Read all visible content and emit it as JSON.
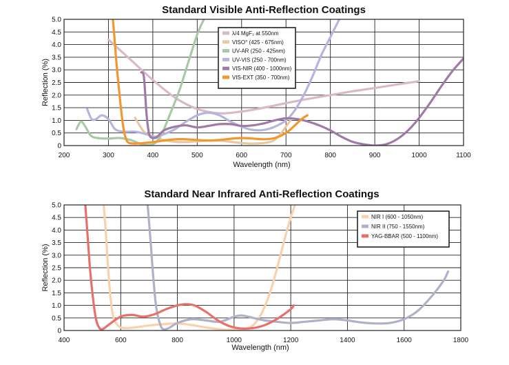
{
  "chart_data": [
    {
      "type": "line",
      "title": "Standard Visible Anti-Reflection Coatings",
      "xlabel": "Wavelength (nm)",
      "ylabel": "Reflection (%)",
      "xlim": [
        200,
        1100
      ],
      "ylim": [
        0,
        5.0
      ],
      "xticks": [
        200,
        300,
        400,
        500,
        600,
        700,
        800,
        900,
        1000,
        1100
      ],
      "yticks": [
        0,
        0.5,
        1.0,
        1.5,
        2.0,
        2.5,
        3.0,
        3.5,
        4.0,
        4.5,
        5.0
      ],
      "ytick_labels": [
        "0",
        "0.5",
        "1.0",
        "1.5",
        "2.0",
        "2.5",
        "3.0",
        "3.5",
        "4.0",
        "4.5",
        "5.0"
      ],
      "grid": true,
      "legend_position": "top-center",
      "series": [
        {
          "name": "λ/4 MgF₂ at 550nm",
          "color": "#d8b9c8",
          "points": [
            [
              300,
              4.2
            ],
            [
              350,
              3.4
            ],
            [
              400,
              2.6
            ],
            [
              450,
              1.9
            ],
            [
              500,
              1.45
            ],
            [
              550,
              1.28
            ],
            [
              600,
              1.35
            ],
            [
              650,
              1.5
            ],
            [
              700,
              1.68
            ],
            [
              750,
              1.85
            ],
            [
              800,
              2.0
            ],
            [
              850,
              2.15
            ],
            [
              900,
              2.28
            ],
            [
              950,
              2.42
            ],
            [
              1000,
              2.55
            ]
          ]
        },
        {
          "name": "VISO° (425 - 675nm)",
          "color": "#e8c7a4",
          "points": [
            [
              360,
              1.1
            ],
            [
              380,
              0.55
            ],
            [
              400,
              0.35
            ],
            [
              425,
              0.22
            ],
            [
              450,
              0.15
            ],
            [
              475,
              0.14
            ],
            [
              500,
              0.17
            ],
            [
              525,
              0.2
            ],
            [
              550,
              0.2
            ],
            [
              575,
              0.15
            ],
            [
              600,
              0.1
            ],
            [
              625,
              0.08
            ],
            [
              650,
              0.1
            ],
            [
              670,
              0.18
            ],
            [
              685,
              0.4
            ],
            [
              700,
              0.75
            ],
            [
              710,
              1.0
            ]
          ]
        },
        {
          "name": "UV-AR (250 - 425nm)",
          "color": "#a9c9a6",
          "points": [
            [
              228,
              0.65
            ],
            [
              238,
              0.95
            ],
            [
              248,
              0.75
            ],
            [
              260,
              0.4
            ],
            [
              275,
              0.3
            ],
            [
              300,
              0.28
            ],
            [
              325,
              0.3
            ],
            [
              350,
              0.22
            ],
            [
              375,
              0.05
            ],
            [
              390,
              0.02
            ],
            [
              405,
              0.1
            ],
            [
              420,
              0.45
            ],
            [
              440,
              1.3
            ],
            [
              460,
              2.2
            ],
            [
              480,
              3.3
            ],
            [
              500,
              4.4
            ],
            [
              515,
              5.0
            ]
          ]
        },
        {
          "name": "UV-VIS (250 - 700nm)",
          "color": "#b6b6dc",
          "points": [
            [
              252,
              1.45
            ],
            [
              262,
              1.05
            ],
            [
              272,
              1.05
            ],
            [
              285,
              1.2
            ],
            [
              300,
              1.05
            ],
            [
              315,
              0.65
            ],
            [
              335,
              0.55
            ],
            [
              360,
              0.55
            ],
            [
              385,
              0.45
            ],
            [
              405,
              0.35
            ],
            [
              425,
              0.45
            ],
            [
              450,
              0.65
            ],
            [
              475,
              0.95
            ],
            [
              500,
              1.2
            ],
            [
              525,
              1.3
            ],
            [
              550,
              1.2
            ],
            [
              575,
              0.95
            ],
            [
              600,
              0.75
            ],
            [
              625,
              0.62
            ],
            [
              650,
              0.62
            ],
            [
              675,
              0.75
            ],
            [
              700,
              1.0
            ],
            [
              720,
              1.4
            ],
            [
              740,
              2.0
            ],
            [
              760,
              2.75
            ],
            [
              780,
              3.6
            ],
            [
              800,
              4.3
            ],
            [
              820,
              5.0
            ]
          ]
        },
        {
          "name": "VIS-NIR (400 - 1000nm)",
          "color": "#a07aa6",
          "points": [
            [
              374,
              2.9
            ],
            [
              380,
              2.7
            ],
            [
              386,
              1.2
            ],
            [
              392,
              0.45
            ],
            [
              400,
              0.3
            ],
            [
              410,
              0.35
            ],
            [
              425,
              0.6
            ],
            [
              450,
              0.75
            ],
            [
              475,
              0.8
            ],
            [
              500,
              0.72
            ],
            [
              525,
              0.78
            ],
            [
              550,
              0.85
            ],
            [
              575,
              0.85
            ],
            [
              600,
              0.78
            ],
            [
              625,
              0.8
            ],
            [
              650,
              0.88
            ],
            [
              675,
              1.0
            ],
            [
              700,
              1.08
            ],
            [
              725,
              1.05
            ],
            [
              750,
              0.95
            ],
            [
              775,
              0.8
            ],
            [
              800,
              0.6
            ],
            [
              825,
              0.35
            ],
            [
              850,
              0.15
            ],
            [
              875,
              0.05
            ],
            [
              900,
              0.0
            ],
            [
              925,
              0.05
            ],
            [
              950,
              0.25
            ],
            [
              975,
              0.6
            ],
            [
              1000,
              1.1
            ],
            [
              1025,
              1.7
            ],
            [
              1050,
              2.35
            ],
            [
              1075,
              2.95
            ],
            [
              1100,
              3.45
            ]
          ]
        },
        {
          "name": "VIS-EXT (350 - 700nm)",
          "color": "#f2962e",
          "points": [
            [
              310,
              5.0
            ],
            [
              313,
              4.4
            ],
            [
              318,
              3.3
            ],
            [
              325,
              2.0
            ],
            [
              332,
              0.9
            ],
            [
              338,
              0.35
            ],
            [
              345,
              0.12
            ],
            [
              360,
              0.08
            ],
            [
              380,
              0.1
            ],
            [
              400,
              0.14
            ],
            [
              425,
              0.2
            ],
            [
              450,
              0.25
            ],
            [
              475,
              0.25
            ],
            [
              500,
              0.22
            ],
            [
              525,
              0.2
            ],
            [
              550,
              0.22
            ],
            [
              575,
              0.27
            ],
            [
              600,
              0.3
            ],
            [
              625,
              0.28
            ],
            [
              650,
              0.25
            ],
            [
              675,
              0.3
            ],
            [
              700,
              0.5
            ],
            [
              720,
              0.8
            ],
            [
              735,
              1.05
            ],
            [
              748,
              1.2
            ]
          ]
        }
      ]
    },
    {
      "type": "line",
      "title": "Standard Near Infrared Anti-Reflection Coatings",
      "xlabel": "Wavelength (nm)",
      "ylabel": "Reflection (%)",
      "xlim": [
        400,
        1800
      ],
      "ylim": [
        0,
        5.0
      ],
      "xticks": [
        400,
        600,
        800,
        1000,
        1200,
        1400,
        1600,
        1800
      ],
      "yticks": [
        0,
        0.5,
        1.0,
        1.5,
        2.0,
        2.5,
        3.0,
        3.5,
        4.0,
        4.5,
        5.0
      ],
      "ytick_labels": [
        "0",
        "0.5",
        "1.0",
        "1.5",
        "2.0",
        "2.5",
        "3.0",
        "3.5",
        "4.0",
        "4.5",
        "5.0"
      ],
      "grid": true,
      "legend_position": "top-right",
      "series": [
        {
          "name": "NIR I (600 - 1050nm)",
          "color": "#f9d2ad",
          "points": [
            [
              540,
              5.0
            ],
            [
              548,
              3.8
            ],
            [
              556,
              2.4
            ],
            [
              565,
              1.2
            ],
            [
              575,
              0.5
            ],
            [
              590,
              0.2
            ],
            [
              610,
              0.1
            ],
            [
              650,
              0.12
            ],
            [
              700,
              0.2
            ],
            [
              750,
              0.25
            ],
            [
              800,
              0.28
            ],
            [
              850,
              0.22
            ],
            [
              900,
              0.12
            ],
            [
              950,
              0.05
            ],
            [
              1000,
              0.03
            ],
            [
              1050,
              0.1
            ],
            [
              1075,
              0.3
            ],
            [
              1100,
              0.75
            ],
            [
              1125,
              1.45
            ],
            [
              1150,
              2.4
            ],
            [
              1175,
              3.5
            ],
            [
              1200,
              4.5
            ],
            [
              1215,
              5.0
            ]
          ]
        },
        {
          "name": "NIR II (750 - 1550nm)",
          "color": "#aeb2c8",
          "points": [
            [
              695,
              5.0
            ],
            [
              705,
              3.6
            ],
            [
              715,
              2.1
            ],
            [
              725,
              0.95
            ],
            [
              738,
              0.28
            ],
            [
              750,
              0.05
            ],
            [
              770,
              0.1
            ],
            [
              800,
              0.3
            ],
            [
              850,
              0.45
            ],
            [
              900,
              0.4
            ],
            [
              950,
              0.35
            ],
            [
              1000,
              0.55
            ],
            [
              1025,
              0.6
            ],
            [
              1050,
              0.55
            ],
            [
              1100,
              0.42
            ],
            [
              1150,
              0.35
            ],
            [
              1200,
              0.3
            ],
            [
              1250,
              0.35
            ],
            [
              1300,
              0.4
            ],
            [
              1350,
              0.45
            ],
            [
              1400,
              0.4
            ],
            [
              1450,
              0.32
            ],
            [
              1500,
              0.28
            ],
            [
              1550,
              0.3
            ],
            [
              1600,
              0.45
            ],
            [
              1650,
              0.8
            ],
            [
              1700,
              1.4
            ],
            [
              1740,
              2.0
            ],
            [
              1755,
              2.35
            ]
          ]
        },
        {
          "name": "YAG-BBAR (500 - 1100nm)",
          "color": "#e8706a",
          "points": [
            [
              475,
              5.0
            ],
            [
              483,
              3.8
            ],
            [
              492,
              2.4
            ],
            [
              502,
              1.3
            ],
            [
              512,
              0.5
            ],
            [
              522,
              0.15
            ],
            [
              535,
              0.05
            ],
            [
              560,
              0.25
            ],
            [
              600,
              0.55
            ],
            [
              640,
              0.62
            ],
            [
              680,
              0.55
            ],
            [
              720,
              0.65
            ],
            [
              760,
              0.85
            ],
            [
              800,
              1.0
            ],
            [
              830,
              1.05
            ],
            [
              860,
              1.0
            ],
            [
              900,
              0.75
            ],
            [
              950,
              0.35
            ],
            [
              1000,
              0.12
            ],
            [
              1050,
              0.08
            ],
            [
              1100,
              0.18
            ],
            [
              1150,
              0.45
            ],
            [
              1200,
              0.85
            ],
            [
              1210,
              1.0
            ]
          ]
        }
      ]
    }
  ]
}
